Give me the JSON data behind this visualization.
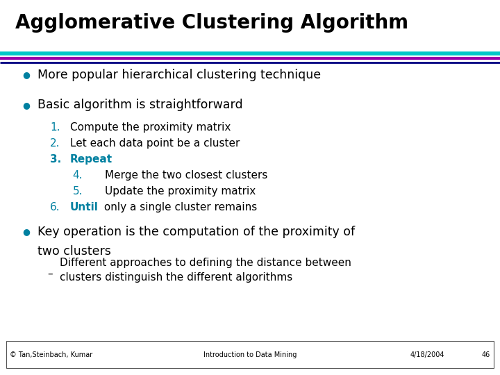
{
  "title": "Agglomerative Clustering Algorithm",
  "title_fontsize": 20,
  "bg_color": "#FFFFFF",
  "line1_color": "#00C8C8",
  "line2_color": "#9900AA",
  "line3_color": "#000080",
  "bullet_color": "#0080A0",
  "number_color": "#0080A0",
  "text_color": "#000000",
  "bullet1": "More popular hierarchical clustering technique",
  "bullet2": "Basic algorithm is straightforward",
  "numbered": [
    {
      "n": "1.",
      "text": "Compute the proximity matrix",
      "bold": false,
      "indent": 0
    },
    {
      "n": "2.",
      "text": "Let each data point be a cluster",
      "bold": false,
      "indent": 0
    },
    {
      "n": "3.",
      "text": "Repeat",
      "bold": true,
      "indent": 0
    },
    {
      "n": "4.",
      "text": "Merge the two closest clusters",
      "bold": false,
      "indent": 1
    },
    {
      "n": "5.",
      "text": "Update the proximity matrix",
      "bold": false,
      "indent": 1
    },
    {
      "n": "6.",
      "text_part1": "Until",
      "text_part2": " only a single cluster remains",
      "indent": 0
    }
  ],
  "bullet3_line1": "Key operation is the computation of the proximity of",
  "bullet3_line2": "two clusters",
  "sub_dash": "Different approaches to defining the distance between\nclusters distinguish the different algorithms",
  "footer_left": "© Tan,Steinbach, Kumar",
  "footer_center": "Introduction to Data Mining",
  "footer_right": "4/18/2004",
  "footer_page": "46"
}
